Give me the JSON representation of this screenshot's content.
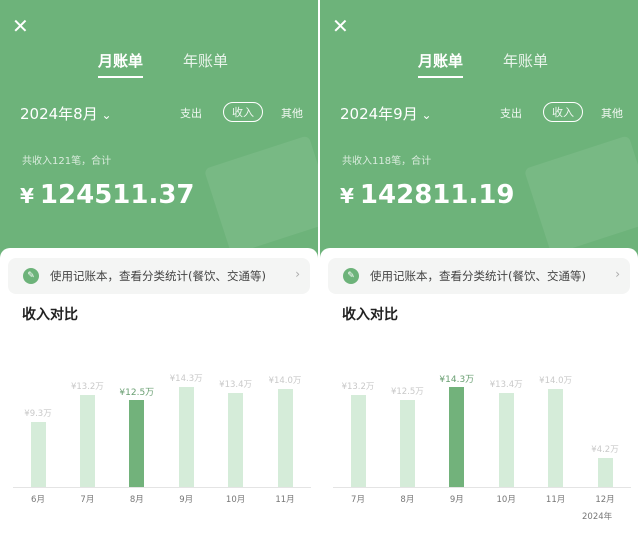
{
  "colors": {
    "header": "#6db37a",
    "bar": "#d5ecd9",
    "bar_selected": "#72b27b"
  },
  "panels": [
    {
      "tabs": [
        "月账单",
        "年账单"
      ],
      "active_tab": 0,
      "month": "2024年8月",
      "types": [
        "支出",
        "收入",
        "其他"
      ],
      "active_type": 1,
      "summary": "共收入121笔，合计",
      "currency": "¥",
      "amount": "124511.37",
      "banner": "使用记账本，查看分类统计(餐饮、交通等)",
      "chart_title": "收入对比",
      "chart_data": {
        "type": "bar",
        "categories": [
          "6月",
          "7月",
          "8月",
          "9月",
          "10月",
          "11月"
        ],
        "values": [
          9.3,
          13.2,
          12.5,
          14.3,
          13.4,
          14.0
        ],
        "labels": [
          "¥9.3万",
          "¥13.2万",
          "¥12.5万",
          "¥14.3万",
          "¥13.4万",
          "¥14.0万"
        ],
        "selected": 2,
        "unit": "万"
      }
    },
    {
      "tabs": [
        "月账单",
        "年账单"
      ],
      "active_tab": 0,
      "month": "2024年9月",
      "types": [
        "支出",
        "收入",
        "其他"
      ],
      "active_type": 1,
      "summary": "共收入118笔，合计",
      "currency": "¥",
      "amount": "142811.19",
      "banner": "使用记账本，查看分类统计(餐饮、交通等)",
      "chart_title": "收入对比",
      "chart_data": {
        "type": "bar",
        "categories": [
          "7月",
          "8月",
          "9月",
          "10月",
          "11月",
          "12月"
        ],
        "values": [
          13.2,
          12.5,
          14.3,
          13.4,
          14.0,
          4.2
        ],
        "labels": [
          "¥13.2万",
          "¥12.5万",
          "¥14.3万",
          "¥13.4万",
          "¥14.0万",
          "¥4.2万"
        ],
        "selected": 2,
        "unit": "万",
        "year_label": "2024年"
      }
    }
  ]
}
